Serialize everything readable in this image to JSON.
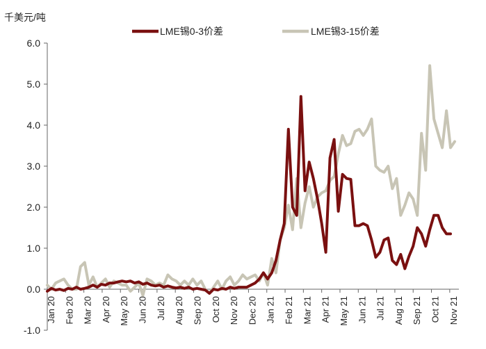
{
  "chart_data": {
    "type": "line",
    "unit_label": "千美元/吨",
    "ylim": [
      -1.0,
      6.0
    ],
    "y_ticks": [
      "6.0",
      "5.0",
      "4.0",
      "3.0",
      "2.0",
      "1.0",
      "0.0",
      "-1.0"
    ],
    "y_tick_values": [
      6,
      5,
      4,
      3,
      2,
      1,
      0,
      -1
    ],
    "x_range": [
      0,
      99
    ],
    "x_tick_labels": [
      "Jan 20",
      "Feb 20",
      "Mar 20",
      "Apr 20",
      "May 20",
      "Jun 20",
      "Jul 20",
      "Aug 20",
      "Sep 20",
      "Oct 20",
      "Nov 20",
      "Dec 20",
      "Jan 21",
      "Feb 21",
      "Mar 21",
      "Apr 21",
      "May 21",
      "Jun 21",
      "Jul 21",
      "Aug 21",
      "Sep 21",
      "Oct 21",
      "Nov 21"
    ],
    "x_tick_positions": [
      0,
      4.4,
      8.8,
      13.2,
      17.6,
      22,
      26.4,
      30.8,
      35.2,
      39.6,
      44,
      48.4,
      52.8,
      57.2,
      61.6,
      66,
      70.4,
      74.8,
      79.2,
      83.6,
      88,
      92.4,
      96.8
    ],
    "grid": false,
    "legend_position": "top",
    "series": [
      {
        "name": "LME锡0-3价差",
        "color": "#7a1010",
        "x": [
          0,
          1,
          2,
          3,
          4,
          5,
          6,
          7,
          8,
          9,
          10,
          11,
          12,
          13,
          14,
          15,
          16,
          17,
          18,
          19,
          20,
          21,
          22,
          23,
          24,
          25,
          26,
          27,
          28,
          29,
          30,
          31,
          32,
          33,
          34,
          35,
          36,
          37,
          38,
          39,
          40,
          41,
          42,
          43,
          44,
          45,
          46,
          47,
          48,
          49,
          50,
          51,
          52,
          53,
          54,
          55,
          56,
          57,
          58,
          59,
          60,
          61,
          62,
          63,
          64,
          65,
          66,
          67,
          68,
          69,
          70,
          71,
          72,
          73,
          74,
          75,
          76,
          77,
          78,
          79,
          80,
          81,
          82,
          83,
          84,
          85,
          86,
          87,
          88,
          89,
          90,
          91,
          92,
          93,
          94,
          95,
          96,
          97,
          98
        ],
        "values": [
          -0.05,
          0.02,
          -0.02,
          0.0,
          -0.03,
          0.02,
          0.0,
          0.05,
          0.0,
          0.02,
          0.05,
          0.1,
          0.05,
          0.12,
          0.1,
          0.15,
          0.15,
          0.18,
          0.2,
          0.18,
          0.2,
          0.15,
          0.18,
          0.12,
          0.15,
          0.1,
          0.08,
          0.1,
          0.05,
          0.08,
          0.05,
          0.03,
          0.05,
          0.02,
          0.05,
          0.0,
          0.02,
          0.0,
          -0.02,
          -0.1,
          0.0,
          -0.02,
          0.02,
          0.0,
          0.05,
          0.02,
          0.05,
          0.05,
          0.05,
          0.1,
          0.15,
          0.25,
          0.4,
          0.25,
          0.4,
          0.7,
          1.2,
          1.6,
          3.9,
          2.0,
          1.8,
          4.7,
          2.4,
          3.1,
          2.7,
          2.2,
          1.6,
          0.9,
          3.2,
          3.65,
          1.9,
          2.8,
          2.7,
          2.68,
          1.55,
          1.55,
          1.6,
          1.55,
          1.2,
          0.78,
          0.9,
          1.2,
          1.25,
          0.7,
          0.6,
          0.85,
          0.5,
          0.8,
          1.05,
          1.5,
          1.35,
          1.05,
          1.45,
          1.8,
          1.8,
          1.5,
          1.35,
          1.35,
          null
        ]
      },
      {
        "name": "LME锡3-15价差",
        "color": "#c8c5b5",
        "x": [
          0,
          1,
          2,
          3,
          4,
          5,
          6,
          7,
          8,
          9,
          10,
          11,
          12,
          13,
          14,
          15,
          16,
          17,
          18,
          19,
          20,
          21,
          22,
          23,
          24,
          25,
          26,
          27,
          28,
          29,
          30,
          31,
          32,
          33,
          34,
          35,
          36,
          37,
          38,
          39,
          40,
          41,
          42,
          43,
          44,
          45,
          46,
          47,
          48,
          49,
          50,
          51,
          52,
          53,
          54,
          55,
          56,
          57,
          58,
          59,
          60,
          61,
          62,
          63,
          64,
          65,
          66,
          67,
          68,
          69,
          70,
          71,
          72,
          73,
          74,
          75,
          76,
          77,
          78,
          79,
          80,
          81,
          82,
          83,
          84,
          85,
          86,
          87,
          88,
          89,
          90,
          91,
          92,
          93,
          94,
          95,
          96,
          97,
          98
        ],
        "values": [
          0.1,
          0.0,
          0.15,
          0.2,
          0.25,
          0.1,
          0.0,
          0.0,
          0.55,
          0.65,
          0.1,
          0.3,
          0.05,
          0.15,
          0.25,
          0.05,
          0.2,
          0.15,
          0.1,
          0.1,
          -0.05,
          0.05,
          0.15,
          -0.15,
          0.25,
          0.2,
          0.1,
          0.15,
          0.1,
          0.35,
          0.25,
          0.2,
          0.1,
          0.2,
          0.1,
          0.25,
          0.1,
          0.2,
          0.0,
          -0.1,
          0.05,
          0.2,
          0.0,
          0.2,
          0.3,
          0.1,
          0.2,
          0.35,
          0.25,
          0.3,
          0.35,
          0.2,
          0.4,
          0.1,
          0.75,
          0.4,
          1.2,
          1.5,
          2.05,
          1.45,
          2.7,
          1.5,
          2.1,
          2.5,
          2.0,
          2.25,
          2.35,
          2.4,
          2.65,
          2.75,
          3.3,
          3.75,
          3.5,
          3.55,
          3.85,
          3.9,
          3.75,
          3.9,
          4.15,
          3.0,
          2.9,
          2.85,
          3.0,
          2.45,
          2.7,
          1.8,
          2.05,
          2.35,
          2.2,
          1.8,
          3.8,
          2.9,
          5.45,
          4.15,
          3.8,
          3.45,
          4.35,
          3.45,
          3.6
        ]
      }
    ]
  }
}
